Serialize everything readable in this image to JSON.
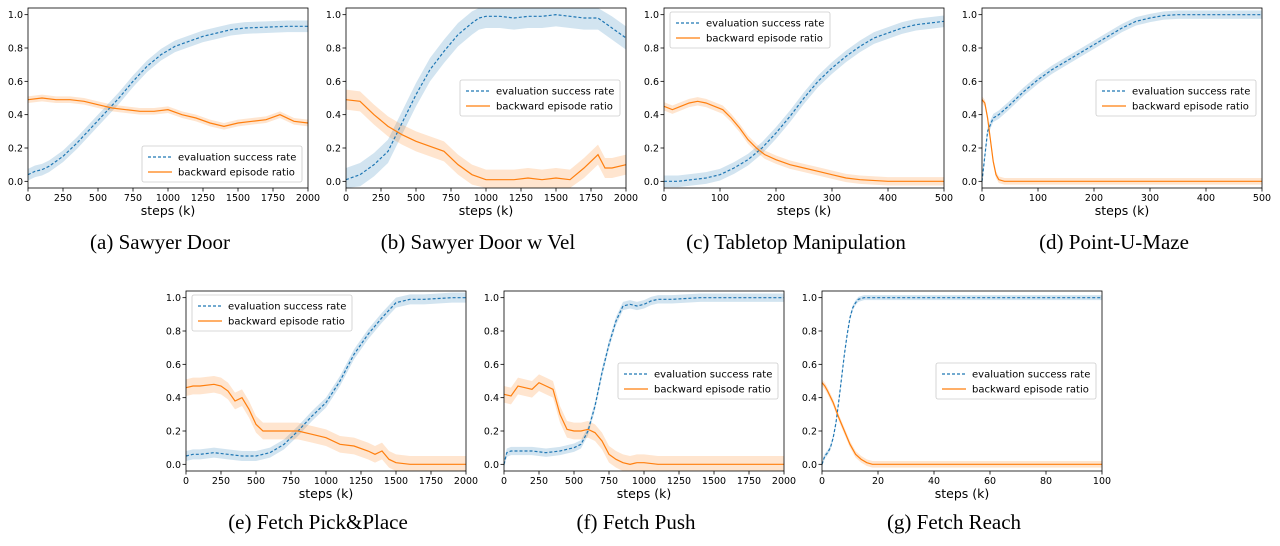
{
  "legend_labels": {
    "eval": "evaluation success rate",
    "backward": "backward episode ratio"
  },
  "colors": {
    "eval": "#1f77b4",
    "backward": "#ff7f0e"
  },
  "chart_data": [
    {
      "type": "line",
      "caption": "(a)  Sawyer Door",
      "xlabel": "steps (k)",
      "ylabel": "",
      "xlim": [
        0,
        2000
      ],
      "ylim": [
        -0.04,
        1.04
      ],
      "xticks": [
        0,
        250,
        500,
        750,
        1000,
        1250,
        1500,
        1750,
        2000
      ],
      "yticks": [
        0.0,
        0.2,
        0.4,
        0.6,
        0.8,
        1.0
      ],
      "legend_position": "lower-right",
      "series": [
        {
          "name": "evaluation success rate",
          "style": "dashed",
          "band": 0.035,
          "x": [
            0,
            50,
            100,
            150,
            250,
            350,
            450,
            550,
            650,
            750,
            850,
            950,
            1050,
            1150,
            1250,
            1350,
            1450,
            1550,
            1700,
            1850,
            2000
          ],
          "y": [
            0.04,
            0.06,
            0.07,
            0.09,
            0.15,
            0.23,
            0.32,
            0.41,
            0.5,
            0.6,
            0.69,
            0.76,
            0.81,
            0.84,
            0.87,
            0.89,
            0.91,
            0.92,
            0.925,
            0.93,
            0.93
          ]
        },
        {
          "name": "backward episode ratio",
          "style": "solid",
          "band": 0.02,
          "x": [
            0,
            100,
            200,
            300,
            400,
            500,
            600,
            700,
            800,
            900,
            1000,
            1100,
            1200,
            1300,
            1400,
            1500,
            1600,
            1700,
            1800,
            1900,
            2000
          ],
          "y": [
            0.49,
            0.5,
            0.49,
            0.49,
            0.48,
            0.46,
            0.44,
            0.43,
            0.42,
            0.42,
            0.43,
            0.4,
            0.38,
            0.35,
            0.33,
            0.35,
            0.36,
            0.37,
            0.4,
            0.36,
            0.35
          ]
        }
      ]
    },
    {
      "type": "line",
      "caption": "(b)  Sawyer Door w Vel",
      "xlabel": "steps (k)",
      "ylabel": "",
      "xlim": [
        0,
        2000
      ],
      "ylim": [
        -0.04,
        1.04
      ],
      "xticks": [
        0,
        250,
        500,
        750,
        1000,
        1250,
        1500,
        1750,
        2000
      ],
      "yticks": [
        0.0,
        0.2,
        0.4,
        0.6,
        0.8,
        1.0
      ],
      "legend_position": "center-right",
      "series": [
        {
          "name": "evaluation success rate",
          "style": "dashed",
          "band": 0.07,
          "x": [
            0,
            100,
            200,
            300,
            400,
            500,
            600,
            700,
            800,
            900,
            950,
            1000,
            1100,
            1200,
            1300,
            1400,
            1500,
            1600,
            1700,
            1800,
            1900,
            2000
          ],
          "y": [
            0.01,
            0.04,
            0.1,
            0.18,
            0.35,
            0.52,
            0.67,
            0.78,
            0.88,
            0.95,
            0.98,
            0.99,
            0.99,
            0.98,
            0.99,
            0.99,
            1.0,
            0.99,
            0.98,
            0.98,
            0.92,
            0.86
          ]
        },
        {
          "name": "backward episode ratio",
          "style": "solid",
          "band": 0.06,
          "x": [
            0,
            100,
            200,
            300,
            400,
            500,
            600,
            700,
            800,
            900,
            1000,
            1100,
            1200,
            1300,
            1400,
            1500,
            1600,
            1700,
            1800,
            1850,
            1900,
            2000
          ],
          "y": [
            0.49,
            0.48,
            0.4,
            0.33,
            0.28,
            0.24,
            0.21,
            0.18,
            0.1,
            0.04,
            0.01,
            0.01,
            0.01,
            0.02,
            0.01,
            0.02,
            0.01,
            0.08,
            0.16,
            0.08,
            0.08,
            0.1
          ]
        }
      ]
    },
    {
      "type": "line",
      "caption": "(c)  Tabletop Manipulation",
      "xlabel": "steps (k)",
      "ylabel": "",
      "xlim": [
        0,
        500
      ],
      "ylim": [
        -0.04,
        1.04
      ],
      "xticks": [
        0,
        100,
        200,
        300,
        400,
        500
      ],
      "yticks": [
        0.0,
        0.2,
        0.4,
        0.6,
        0.8,
        1.0
      ],
      "legend_position": "top-left",
      "series": [
        {
          "name": "evaluation success rate",
          "style": "dashed",
          "band": 0.035,
          "x": [
            0,
            25,
            50,
            75,
            100,
            125,
            150,
            175,
            200,
            225,
            250,
            275,
            300,
            325,
            350,
            375,
            400,
            425,
            450,
            475,
            500
          ],
          "y": [
            0.0,
            0.0,
            0.01,
            0.02,
            0.04,
            0.08,
            0.13,
            0.2,
            0.29,
            0.39,
            0.5,
            0.6,
            0.68,
            0.75,
            0.81,
            0.86,
            0.89,
            0.92,
            0.94,
            0.95,
            0.96
          ]
        },
        {
          "name": "backward episode ratio",
          "style": "solid",
          "band": 0.025,
          "x": [
            0,
            15,
            30,
            45,
            60,
            75,
            90,
            105,
            120,
            135,
            150,
            165,
            180,
            200,
            225,
            250,
            275,
            300,
            325,
            350,
            400,
            450,
            500
          ],
          "y": [
            0.45,
            0.43,
            0.45,
            0.47,
            0.48,
            0.47,
            0.45,
            0.43,
            0.38,
            0.32,
            0.25,
            0.2,
            0.16,
            0.13,
            0.1,
            0.08,
            0.06,
            0.04,
            0.02,
            0.01,
            0.0,
            0.0,
            0.0
          ]
        }
      ]
    },
    {
      "type": "line",
      "caption": "(d)  Point-U-Maze",
      "xlabel": "steps (k)",
      "ylabel": "",
      "xlim": [
        0,
        500
      ],
      "ylim": [
        -0.04,
        1.04
      ],
      "xticks": [
        0,
        100,
        200,
        300,
        400,
        500
      ],
      "yticks": [
        0.0,
        0.2,
        0.4,
        0.6,
        0.8,
        1.0
      ],
      "legend_position": "center-right",
      "series": [
        {
          "name": "evaluation success rate",
          "style": "dashed",
          "band": 0.025,
          "x": [
            0,
            5,
            10,
            20,
            30,
            50,
            75,
            100,
            125,
            150,
            175,
            200,
            225,
            250,
            275,
            300,
            325,
            350,
            400,
            450,
            500
          ],
          "y": [
            0.0,
            0.15,
            0.3,
            0.38,
            0.4,
            0.46,
            0.54,
            0.61,
            0.67,
            0.72,
            0.77,
            0.82,
            0.87,
            0.92,
            0.96,
            0.98,
            0.995,
            1.0,
            1.0,
            1.0,
            1.0
          ]
        },
        {
          "name": "backward episode ratio",
          "style": "solid",
          "band": 0.02,
          "x": [
            0,
            5,
            10,
            15,
            20,
            25,
            30,
            40,
            60,
            100,
            200,
            300,
            400,
            500
          ],
          "y": [
            0.49,
            0.47,
            0.38,
            0.25,
            0.12,
            0.04,
            0.01,
            0.0,
            0.0,
            0.0,
            0.0,
            0.0,
            0.0,
            0.0
          ]
        }
      ]
    },
    {
      "type": "line",
      "caption": "(e)  Fetch Pick&Place",
      "xlabel": "steps (k)",
      "ylabel": "",
      "xlim": [
        0,
        2000
      ],
      "ylim": [
        -0.04,
        1.04
      ],
      "xticks": [
        0,
        250,
        500,
        750,
        1000,
        1250,
        1500,
        1750,
        2000
      ],
      "yticks": [
        0.0,
        0.2,
        0.4,
        0.6,
        0.8,
        1.0
      ],
      "legend_position": "top-left",
      "series": [
        {
          "name": "evaluation success rate",
          "style": "dashed",
          "band": 0.03,
          "x": [
            0,
            50,
            100,
            200,
            300,
            400,
            500,
            600,
            700,
            800,
            900,
            1000,
            1100,
            1200,
            1300,
            1400,
            1500,
            1600,
            1700,
            1800,
            1900,
            2000
          ],
          "y": [
            0.05,
            0.06,
            0.06,
            0.07,
            0.06,
            0.05,
            0.05,
            0.07,
            0.12,
            0.2,
            0.29,
            0.37,
            0.5,
            0.66,
            0.78,
            0.88,
            0.97,
            0.99,
            0.99,
            0.995,
            1.0,
            1.0
          ]
        },
        {
          "name": "backward episode ratio",
          "style": "solid",
          "band": 0.05,
          "x": [
            0,
            50,
            100,
            200,
            250,
            300,
            350,
            400,
            450,
            500,
            550,
            600,
            700,
            800,
            900,
            1000,
            1100,
            1200,
            1300,
            1350,
            1400,
            1450,
            1500,
            1600,
            1800,
            2000
          ],
          "y": [
            0.46,
            0.47,
            0.47,
            0.48,
            0.47,
            0.44,
            0.38,
            0.4,
            0.33,
            0.24,
            0.2,
            0.2,
            0.2,
            0.2,
            0.18,
            0.16,
            0.12,
            0.11,
            0.08,
            0.06,
            0.08,
            0.03,
            0.01,
            0.0,
            0.0,
            0.0
          ]
        }
      ]
    },
    {
      "type": "line",
      "caption": "(f)  Fetch Push",
      "xlabel": "steps (k)",
      "ylabel": "",
      "xlim": [
        0,
        2000
      ],
      "ylim": [
        -0.04,
        1.04
      ],
      "xticks": [
        0,
        250,
        500,
        750,
        1000,
        1250,
        1500,
        1750,
        2000
      ],
      "yticks": [
        0.0,
        0.2,
        0.4,
        0.6,
        0.8,
        1.0
      ],
      "legend_position": "center-right",
      "series": [
        {
          "name": "evaluation success rate",
          "style": "dashed",
          "band": 0.025,
          "x": [
            0,
            20,
            50,
            100,
            200,
            300,
            400,
            500,
            550,
            600,
            650,
            700,
            750,
            800,
            850,
            900,
            950,
            1000,
            1050,
            1100,
            1200,
            1400,
            1600,
            1800,
            2000
          ],
          "y": [
            0.0,
            0.07,
            0.08,
            0.08,
            0.08,
            0.07,
            0.08,
            0.1,
            0.12,
            0.2,
            0.35,
            0.55,
            0.72,
            0.86,
            0.95,
            0.96,
            0.95,
            0.96,
            0.98,
            0.99,
            0.99,
            1.0,
            1.0,
            1.0,
            1.0
          ]
        },
        {
          "name": "backward episode ratio",
          "style": "solid",
          "band": 0.05,
          "x": [
            0,
            50,
            100,
            150,
            200,
            250,
            300,
            350,
            400,
            450,
            500,
            550,
            600,
            650,
            700,
            750,
            800,
            850,
            900,
            950,
            1000,
            1100,
            1200,
            1400,
            1600,
            1800,
            2000
          ],
          "y": [
            0.42,
            0.41,
            0.47,
            0.46,
            0.45,
            0.49,
            0.47,
            0.45,
            0.3,
            0.21,
            0.2,
            0.2,
            0.21,
            0.19,
            0.14,
            0.06,
            0.03,
            0.01,
            0.0,
            0.01,
            0.01,
            0.0,
            0.0,
            0.0,
            0.0,
            0.0,
            0.0
          ]
        }
      ]
    },
    {
      "type": "line",
      "caption": "(g)  Fetch Reach",
      "xlabel": "steps (k)",
      "ylabel": "",
      "xlim": [
        0,
        100
      ],
      "ylim": [
        -0.04,
        1.04
      ],
      "xticks": [
        0,
        20,
        40,
        60,
        80,
        100
      ],
      "yticks": [
        0.0,
        0.2,
        0.4,
        0.6,
        0.8,
        1.0
      ],
      "legend_position": "center-right",
      "series": [
        {
          "name": "evaluation success rate",
          "style": "dashed",
          "band": 0.015,
          "x": [
            0,
            1,
            2,
            3,
            4,
            5,
            6,
            7,
            8,
            9,
            10,
            11,
            12,
            13,
            14,
            15,
            16,
            18,
            20,
            40,
            60,
            80,
            100
          ],
          "y": [
            0.0,
            0.05,
            0.07,
            0.1,
            0.16,
            0.25,
            0.38,
            0.52,
            0.66,
            0.78,
            0.88,
            0.94,
            0.97,
            0.99,
            0.995,
            1.0,
            1.0,
            1.0,
            1.0,
            1.0,
            1.0,
            1.0,
            1.0
          ]
        },
        {
          "name": "backward episode ratio",
          "style": "solid",
          "band": 0.02,
          "x": [
            0,
            1,
            2,
            4,
            6,
            8,
            10,
            12,
            14,
            16,
            18,
            20,
            40,
            60,
            80,
            100
          ],
          "y": [
            0.49,
            0.47,
            0.44,
            0.37,
            0.28,
            0.2,
            0.12,
            0.06,
            0.03,
            0.01,
            0.0,
            0.0,
            0.0,
            0.0,
            0.0,
            0.0
          ]
        }
      ]
    }
  ]
}
